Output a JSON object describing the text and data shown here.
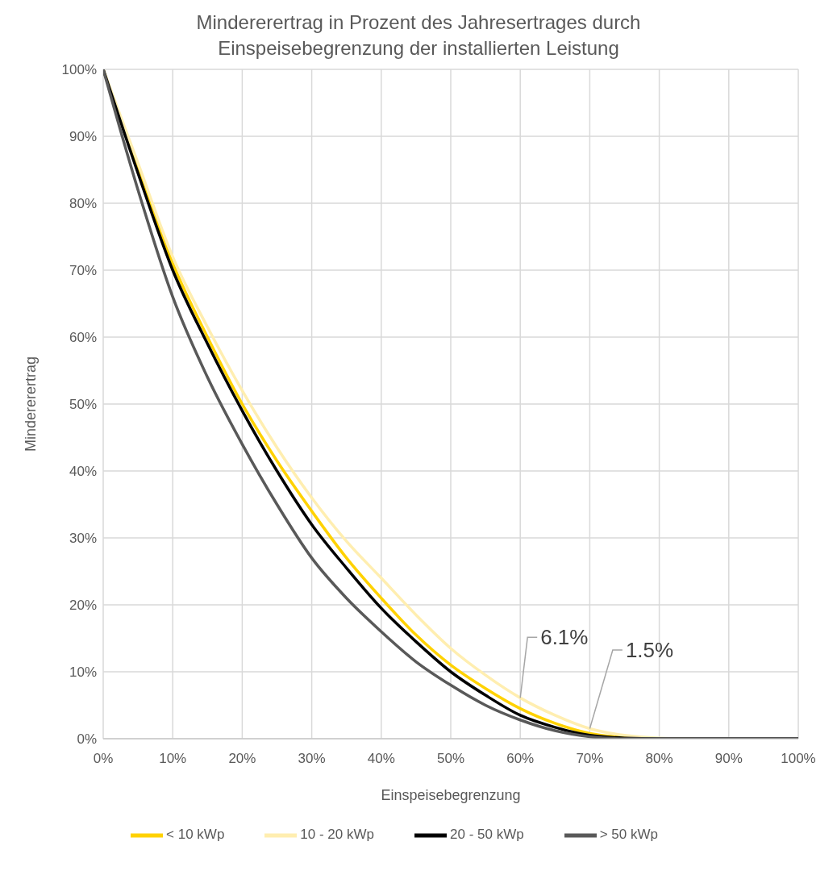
{
  "chart_data": {
    "type": "line",
    "title": "Mindererertrag in Prozent des Jahresertrages durch Einspeisebegrenzung der installierten Leistung",
    "xlabel": "Einspeisebegrenzung",
    "ylabel": "Mindererertrag",
    "x": [
      0,
      5,
      10,
      15,
      20,
      25,
      30,
      35,
      40,
      45,
      50,
      55,
      60,
      65,
      70,
      75,
      80,
      85,
      90,
      95,
      100
    ],
    "series": [
      {
        "name": "< 10 kWp",
        "color": "#ffd200",
        "values": [
          100,
          85,
          71,
          60,
          50,
          41.5,
          34,
          27,
          21,
          15.5,
          11,
          7.5,
          4.5,
          2.3,
          0.8,
          0.2,
          0,
          null,
          null,
          null,
          null
        ]
      },
      {
        "name": "10 - 20 kWp",
        "color": "#ffeeb0",
        "values": [
          100,
          86,
          72,
          61.5,
          52,
          43.5,
          36,
          29.5,
          24,
          18.5,
          13.5,
          9.5,
          6.1,
          3.5,
          1.5,
          0.5,
          0.1,
          0,
          null,
          null,
          null
        ]
      },
      {
        "name": "20 - 50 kWp",
        "color": "#000000",
        "values": [
          100,
          84.5,
          70,
          59,
          49,
          40,
          32,
          25.5,
          19.5,
          14.5,
          10,
          6.5,
          3.5,
          1.7,
          0.5,
          0.1,
          0,
          0,
          0,
          0,
          0
        ]
      },
      {
        "name": "> 50 kWp",
        "color": "#595959",
        "values": [
          100,
          82,
          66,
          54,
          44,
          35,
          27,
          21,
          16,
          11.5,
          8,
          5,
          2.8,
          1.2,
          0.3,
          0,
          0,
          0,
          0,
          0,
          0
        ]
      }
    ],
    "xlim": [
      0,
      100
    ],
    "xticks": [
      {
        "value": 0,
        "label": "0%"
      },
      {
        "value": 10,
        "label": "10%"
      },
      {
        "value": 20,
        "label": "20%"
      },
      {
        "value": 30,
        "label": "30%"
      },
      {
        "value": 40,
        "label": "40%"
      },
      {
        "value": 50,
        "label": "50%"
      },
      {
        "value": 60,
        "label": "60%"
      },
      {
        "value": 70,
        "label": "70%"
      },
      {
        "value": 80,
        "label": "80%"
      },
      {
        "value": 90,
        "label": "90%"
      },
      {
        "value": 100,
        "label": "100%"
      }
    ],
    "ylim": [
      0,
      100
    ],
    "yticks": [
      {
        "value": 0,
        "label": "0%"
      },
      {
        "value": 10,
        "label": "10%"
      },
      {
        "value": 20,
        "label": "20%"
      },
      {
        "value": 30,
        "label": "30%"
      },
      {
        "value": 40,
        "label": "40%"
      },
      {
        "value": 50,
        "label": "50%"
      },
      {
        "value": 60,
        "label": "60%"
      },
      {
        "value": 70,
        "label": "70%"
      },
      {
        "value": 80,
        "label": "80%"
      },
      {
        "value": 90,
        "label": "90%"
      },
      {
        "value": 100,
        "label": "100%"
      }
    ],
    "annotations": [
      {
        "text": "6.1%",
        "x": 60,
        "y": 6.1
      },
      {
        "text": "1.5%",
        "x": 70,
        "y": 1.5
      }
    ],
    "grid": true,
    "legend": "bottom",
    "marker": "none",
    "line_style": "solid"
  }
}
